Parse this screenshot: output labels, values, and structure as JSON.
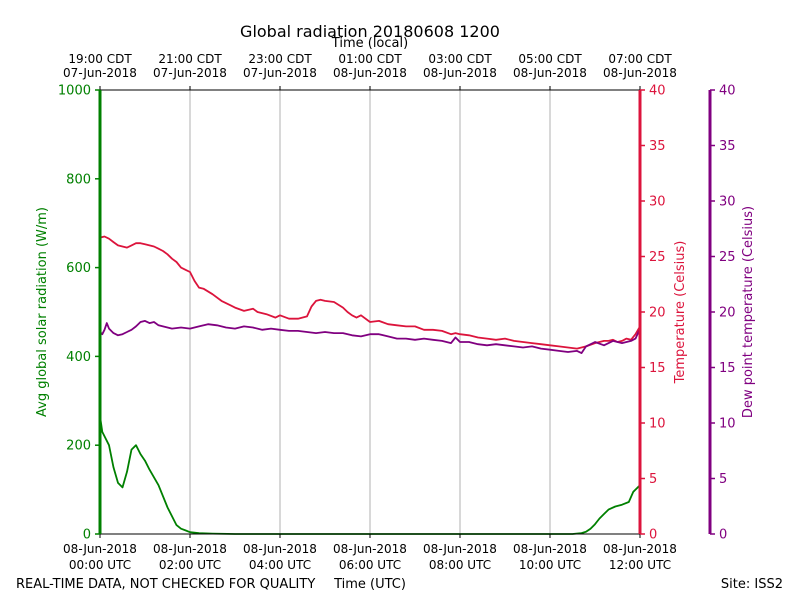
{
  "chart_data": {
    "type": "line",
    "title": "Global radiation 20180608 1200",
    "top_axis_label": "Time (local)",
    "top_ticks": [
      {
        "line1": "19:00 CDT",
        "line2": "07-Jun-2018"
      },
      {
        "line1": "21:00 CDT",
        "line2": "07-Jun-2018"
      },
      {
        "line1": "23:00 CDT",
        "line2": "07-Jun-2018"
      },
      {
        "line1": "01:00 CDT",
        "line2": "08-Jun-2018"
      },
      {
        "line1": "03:00 CDT",
        "line2": "08-Jun-2018"
      },
      {
        "line1": "05:00 CDT",
        "line2": "08-Jun-2018"
      },
      {
        "line1": "07:00 CDT",
        "line2": "08-Jun-2018"
      }
    ],
    "xlabel": "Time (UTC)",
    "x_ticks": [
      {
        "line1": "08-Jun-2018",
        "line2": "00:00 UTC"
      },
      {
        "line1": "08-Jun-2018",
        "line2": "02:00 UTC"
      },
      {
        "line1": "08-Jun-2018",
        "line2": "04:00 UTC"
      },
      {
        "line1": "08-Jun-2018",
        "line2": "06:00 UTC"
      },
      {
        "line1": "08-Jun-2018",
        "line2": "08:00 UTC"
      },
      {
        "line1": "08-Jun-2018",
        "line2": "10:00 UTC"
      },
      {
        "line1": "08-Jun-2018",
        "line2": "12:00 UTC"
      }
    ],
    "x_unit": "hours UTC, 08-Jun-2018",
    "xlim": [
      0,
      12
    ],
    "grid": "vertical lines at x ticks",
    "axes": {
      "radiation": {
        "label": "Avg global solar radiation (W/m)",
        "ylim": [
          0,
          1000
        ],
        "ticks": [
          "0",
          "200",
          "400",
          "600",
          "800",
          "1000"
        ],
        "color": "#008000"
      },
      "temperature": {
        "label": "Temperature (Celsius)",
        "ylim": [
          0,
          40
        ],
        "ticks": [
          "0",
          "5",
          "10",
          "15",
          "20",
          "25",
          "30",
          "35",
          "40"
        ],
        "color": "#dc143c"
      },
      "dewpoint": {
        "label": "Dew point temperature (Celsius)",
        "ylim": [
          0,
          40
        ],
        "ticks": [
          "0",
          "5",
          "10",
          "15",
          "20",
          "25",
          "30",
          "35",
          "40"
        ],
        "color": "#800080"
      }
    },
    "series": [
      {
        "axis": "radiation",
        "color": "#008000",
        "x": [
          0,
          0.05,
          0.15,
          0.2,
          0.3,
          0.4,
          0.5,
          0.6,
          0.7,
          0.8,
          0.9,
          1.0,
          1.1,
          1.3,
          1.5,
          1.7,
          1.8,
          1.9,
          2.0,
          2.2,
          2.5,
          3,
          6,
          9,
          10.5,
          10.7,
          10.8,
          10.9,
          11.0,
          11.1,
          11.2,
          11.3,
          11.45,
          11.6,
          11.75,
          11.85,
          12.0
        ],
        "values": [
          265,
          230,
          210,
          200,
          150,
          115,
          105,
          140,
          190,
          200,
          180,
          165,
          145,
          110,
          60,
          20,
          12,
          8,
          4,
          2,
          1,
          0,
          0,
          0,
          0,
          2,
          5,
          12,
          22,
          35,
          45,
          55,
          62,
          66,
          72,
          95,
          110
        ]
      },
      {
        "axis": "temperature",
        "color": "#dc143c",
        "x": [
          0,
          0.1,
          0.2,
          0.3,
          0.4,
          0.5,
          0.6,
          0.7,
          0.8,
          0.9,
          1.0,
          1.1,
          1.2,
          1.3,
          1.4,
          1.5,
          1.6,
          1.7,
          1.8,
          1.9,
          2.0,
          2.1,
          2.2,
          2.3,
          2.5,
          2.7,
          2.9,
          3.0,
          3.2,
          3.4,
          3.5,
          3.7,
          3.9,
          4.0,
          4.2,
          4.4,
          4.6,
          4.7,
          4.8,
          4.9,
          5.0,
          5.2,
          5.4,
          5.5,
          5.6,
          5.7,
          5.8,
          6.0,
          6.2,
          6.4,
          6.6,
          6.8,
          7.0,
          7.2,
          7.4,
          7.6,
          7.8,
          7.9,
          8.0,
          8.2,
          8.4,
          8.6,
          8.8,
          9.0,
          9.2,
          9.4,
          9.6,
          9.8,
          10.0,
          10.2,
          10.4,
          10.6,
          10.8,
          11.0,
          11.1,
          11.2,
          11.3,
          11.4,
          11.5,
          11.6,
          11.7,
          11.8,
          11.9,
          12.0
        ],
        "values": [
          26.7,
          26.8,
          26.6,
          26.3,
          26.0,
          25.9,
          25.8,
          26.0,
          26.2,
          26.2,
          26.1,
          26.0,
          25.9,
          25.7,
          25.5,
          25.2,
          24.8,
          24.5,
          24.0,
          23.8,
          23.6,
          22.8,
          22.2,
          22.1,
          21.6,
          21.0,
          20.6,
          20.4,
          20.1,
          20.3,
          20.0,
          19.8,
          19.5,
          19.7,
          19.4,
          19.4,
          19.6,
          20.5,
          21.0,
          21.1,
          21.0,
          20.9,
          20.4,
          20.0,
          19.7,
          19.5,
          19.7,
          19.1,
          19.2,
          18.9,
          18.8,
          18.7,
          18.7,
          18.4,
          18.4,
          18.3,
          18.0,
          18.1,
          18.0,
          17.9,
          17.7,
          17.6,
          17.5,
          17.6,
          17.4,
          17.3,
          17.2,
          17.1,
          17.0,
          16.9,
          16.8,
          16.7,
          16.9,
          17.2,
          17.3,
          17.4,
          17.4,
          17.5,
          17.3,
          17.4,
          17.6,
          17.5,
          18.0,
          18.7
        ]
      },
      {
        "axis": "dewpoint",
        "color": "#800080",
        "x": [
          0,
          0.05,
          0.1,
          0.15,
          0.2,
          0.3,
          0.4,
          0.5,
          0.6,
          0.7,
          0.8,
          0.9,
          1.0,
          1.1,
          1.2,
          1.3,
          1.4,
          1.5,
          1.6,
          1.8,
          2.0,
          2.2,
          2.4,
          2.6,
          2.8,
          3.0,
          3.2,
          3.4,
          3.6,
          3.8,
          4.0,
          4.2,
          4.4,
          4.6,
          4.8,
          5.0,
          5.2,
          5.4,
          5.6,
          5.8,
          6.0,
          6.2,
          6.4,
          6.6,
          6.8,
          7.0,
          7.2,
          7.4,
          7.6,
          7.8,
          7.9,
          8.0,
          8.2,
          8.4,
          8.6,
          8.8,
          9.0,
          9.2,
          9.4,
          9.6,
          9.8,
          10.0,
          10.2,
          10.4,
          10.6,
          10.7,
          10.8,
          11.0,
          11.2,
          11.4,
          11.6,
          11.8,
          11.9,
          12.0
        ],
        "values": [
          18.2,
          18.0,
          18.4,
          19.0,
          18.5,
          18.1,
          17.9,
          18.0,
          18.2,
          18.4,
          18.7,
          19.1,
          19.2,
          19.0,
          19.1,
          18.8,
          18.7,
          18.6,
          18.5,
          18.6,
          18.5,
          18.7,
          18.9,
          18.8,
          18.6,
          18.5,
          18.7,
          18.6,
          18.4,
          18.5,
          18.4,
          18.3,
          18.3,
          18.2,
          18.1,
          18.2,
          18.1,
          18.1,
          17.9,
          17.8,
          18.0,
          18.0,
          17.8,
          17.6,
          17.6,
          17.5,
          17.6,
          17.5,
          17.4,
          17.2,
          17.7,
          17.3,
          17.3,
          17.1,
          17.0,
          17.1,
          17.0,
          16.9,
          16.8,
          16.9,
          16.7,
          16.6,
          16.5,
          16.4,
          16.5,
          16.3,
          16.9,
          17.3,
          17.0,
          17.4,
          17.2,
          17.4,
          17.6,
          18.5
        ]
      }
    ]
  },
  "footer": {
    "left": "REAL-TIME DATA, NOT CHECKED FOR QUALITY",
    "right": "Site: ISS2"
  }
}
